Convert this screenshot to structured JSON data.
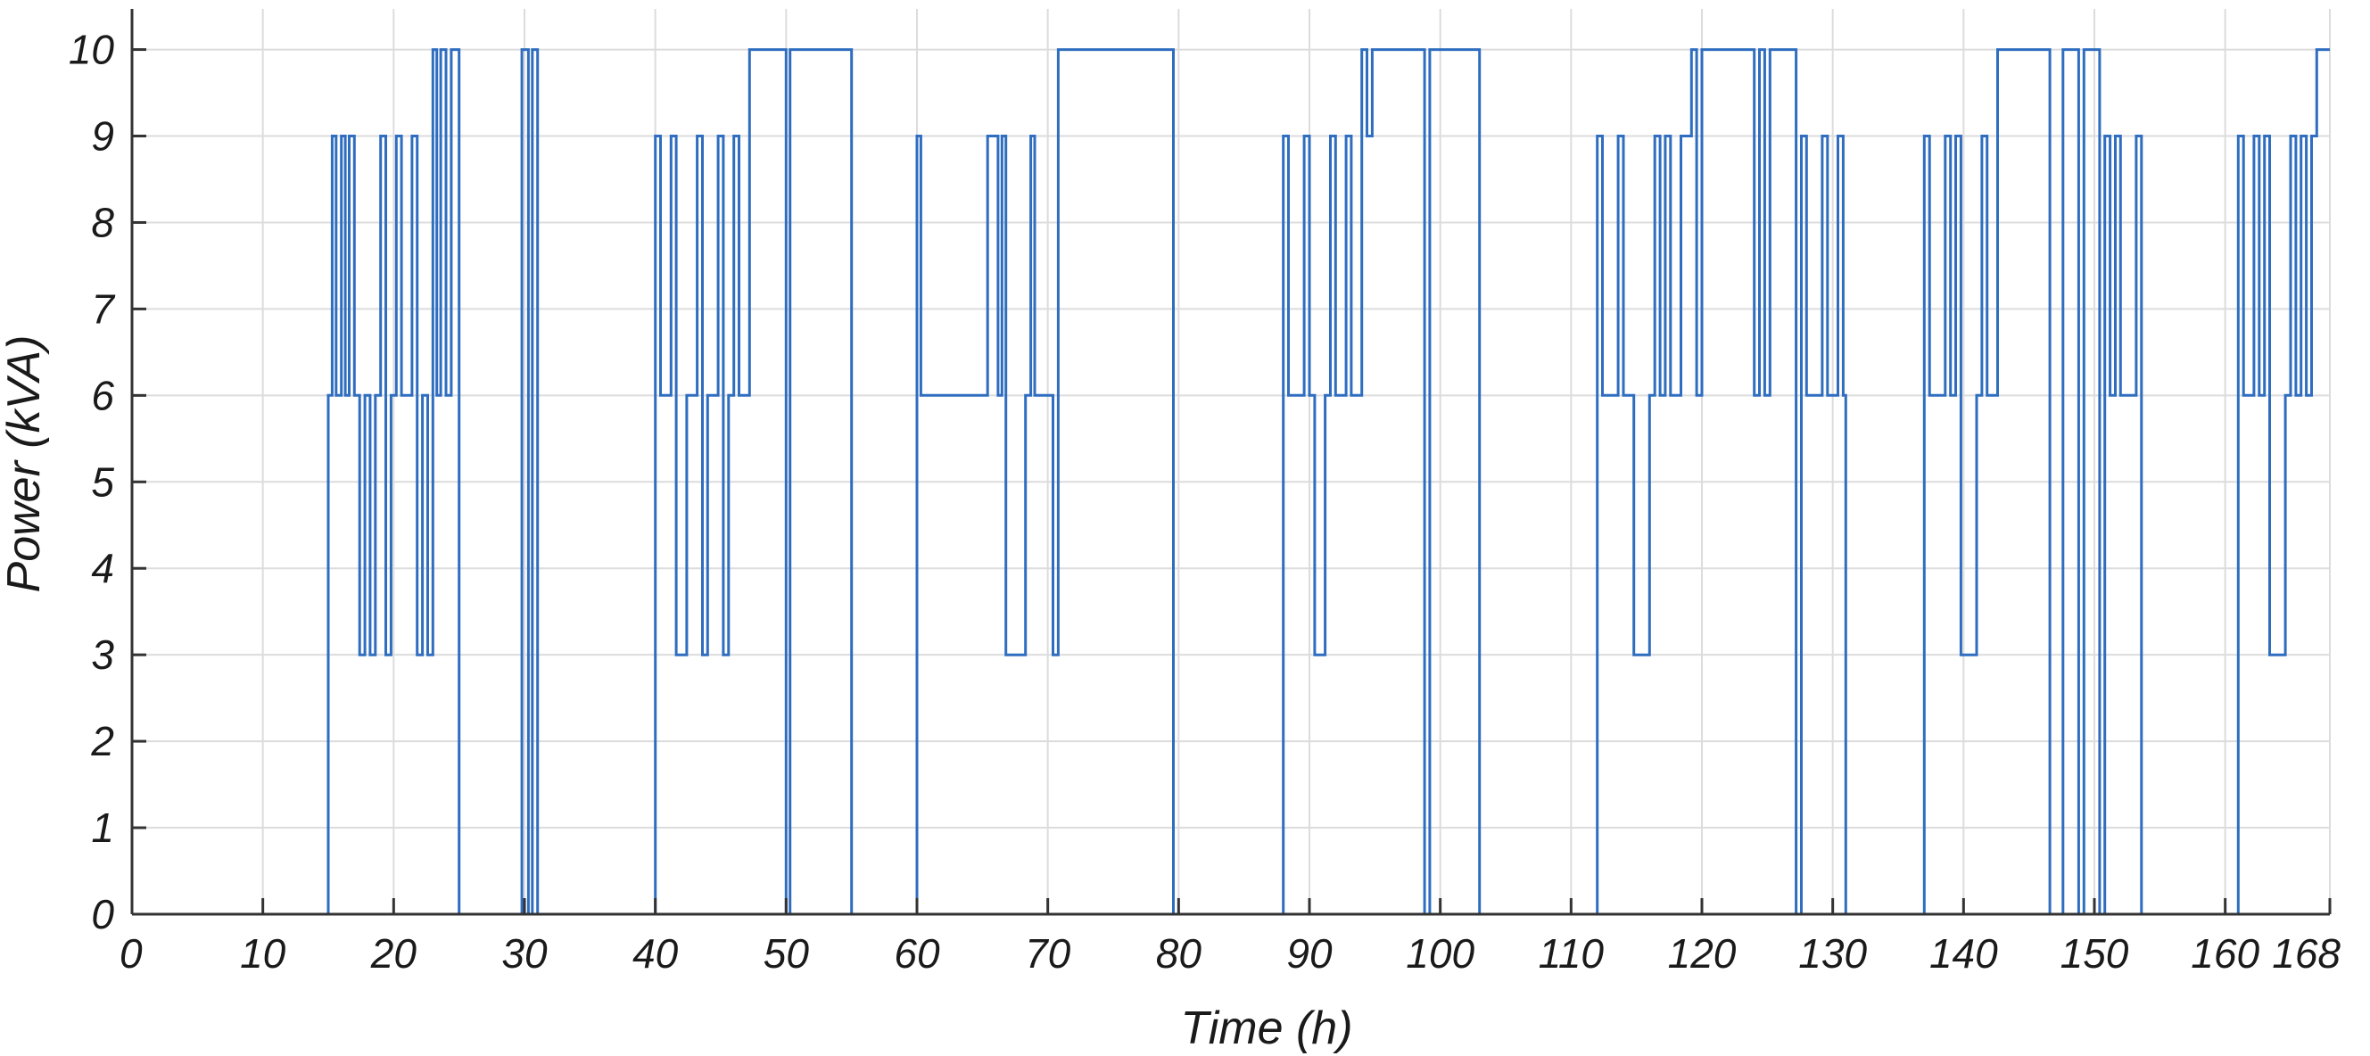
{
  "chart_data": {
    "type": "line",
    "title": "",
    "xlabel": "Time (h)",
    "ylabel": "Power (kVA)",
    "xlim": [
      0,
      168
    ],
    "ylim": [
      0,
      10
    ],
    "xticks": [
      0,
      10,
      20,
      30,
      40,
      50,
      60,
      70,
      80,
      90,
      100,
      110,
      120,
      130,
      140,
      150,
      160,
      168
    ],
    "yticks": [
      0,
      1,
      2,
      3,
      4,
      5,
      6,
      7,
      8,
      9,
      10
    ],
    "grid": true,
    "legend": "none",
    "colors": {
      "line": "#2e6dbf",
      "grid": "#dcdcdc",
      "axis": "#333333"
    },
    "series": [
      {
        "values": [
          [
            0,
            0
          ],
          [
            15,
            0
          ],
          [
            15,
            6
          ],
          [
            15.3,
            9
          ],
          [
            15.6,
            6
          ],
          [
            16,
            9
          ],
          [
            16.3,
            6
          ],
          [
            16.6,
            9
          ],
          [
            17,
            6
          ],
          [
            17.4,
            3
          ],
          [
            17.8,
            6
          ],
          [
            18.2,
            3
          ],
          [
            18.6,
            6
          ],
          [
            19,
            9
          ],
          [
            19.4,
            3
          ],
          [
            19.8,
            6
          ],
          [
            20.2,
            9
          ],
          [
            20.6,
            6
          ],
          [
            21,
            6
          ],
          [
            21.4,
            9
          ],
          [
            21.8,
            3
          ],
          [
            22.2,
            6
          ],
          [
            22.6,
            3
          ],
          [
            23,
            10
          ],
          [
            23.3,
            6
          ],
          [
            23.6,
            10
          ],
          [
            24,
            6
          ],
          [
            24.4,
            10
          ],
          [
            24.8,
            10
          ],
          [
            25,
            0
          ],
          [
            29.8,
            0
          ],
          [
            29.8,
            10
          ],
          [
            30.3,
            0
          ],
          [
            30.6,
            10
          ],
          [
            31,
            0
          ],
          [
            40,
            0
          ],
          [
            40,
            9
          ],
          [
            40.4,
            6
          ],
          [
            40.8,
            6
          ],
          [
            41.2,
            9
          ],
          [
            41.6,
            3
          ],
          [
            42,
            3
          ],
          [
            42.4,
            6
          ],
          [
            42.8,
            6
          ],
          [
            43.2,
            9
          ],
          [
            43.6,
            3
          ],
          [
            44,
            6
          ],
          [
            44.4,
            6
          ],
          [
            44.8,
            9
          ],
          [
            45.2,
            3
          ],
          [
            45.6,
            6
          ],
          [
            46,
            9
          ],
          [
            46.4,
            6
          ],
          [
            46.8,
            6
          ],
          [
            47.2,
            10
          ],
          [
            47.6,
            10
          ],
          [
            48,
            10
          ],
          [
            48.4,
            10
          ],
          [
            48.8,
            10
          ],
          [
            49.2,
            10
          ],
          [
            49.6,
            10
          ],
          [
            50,
            0
          ],
          [
            50.3,
            10
          ],
          [
            50.6,
            10
          ],
          [
            51,
            10
          ],
          [
            51.4,
            10
          ],
          [
            51.8,
            10
          ],
          [
            52.2,
            10
          ],
          [
            52.6,
            10
          ],
          [
            53,
            10
          ],
          [
            53.4,
            10
          ],
          [
            53.8,
            10
          ],
          [
            54.2,
            10
          ],
          [
            54.6,
            10
          ],
          [
            55,
            0
          ],
          [
            60,
            0
          ],
          [
            60,
            9
          ],
          [
            60.3,
            6
          ],
          [
            61,
            6
          ],
          [
            62,
            6
          ],
          [
            63,
            6
          ],
          [
            64,
            6
          ],
          [
            65,
            6
          ],
          [
            65.4,
            9
          ],
          [
            65.8,
            9
          ],
          [
            66.2,
            6
          ],
          [
            66.5,
            9
          ],
          [
            66.8,
            3
          ],
          [
            67.3,
            3
          ],
          [
            67.8,
            3
          ],
          [
            68.3,
            6
          ],
          [
            68.7,
            9
          ],
          [
            69,
            6
          ],
          [
            69.5,
            6
          ],
          [
            70,
            6
          ],
          [
            70.4,
            3
          ],
          [
            70.8,
            10
          ],
          [
            71.2,
            10
          ],
          [
            71.6,
            10
          ],
          [
            72,
            10
          ],
          [
            72.4,
            10
          ],
          [
            72.8,
            10
          ],
          [
            73.2,
            10
          ],
          [
            73.6,
            10
          ],
          [
            74,
            10
          ],
          [
            74.4,
            10
          ],
          [
            74.8,
            10
          ],
          [
            75.2,
            10
          ],
          [
            75.6,
            10
          ],
          [
            76,
            10
          ],
          [
            76.4,
            10
          ],
          [
            76.8,
            10
          ],
          [
            77.2,
            10
          ],
          [
            77.6,
            10
          ],
          [
            78,
            10
          ],
          [
            78.4,
            10
          ],
          [
            78.8,
            10
          ],
          [
            79.2,
            10
          ],
          [
            79.6,
            0
          ],
          [
            88,
            0
          ],
          [
            88,
            9
          ],
          [
            88.4,
            6
          ],
          [
            88.8,
            6
          ],
          [
            89.2,
            6
          ],
          [
            89.6,
            9
          ],
          [
            90,
            6
          ],
          [
            90.4,
            3
          ],
          [
            90.8,
            3
          ],
          [
            91.2,
            6
          ],
          [
            91.6,
            9
          ],
          [
            92,
            6
          ],
          [
            92.4,
            6
          ],
          [
            92.8,
            9
          ],
          [
            93.2,
            6
          ],
          [
            93.6,
            6
          ],
          [
            94,
            10
          ],
          [
            94.4,
            9
          ],
          [
            94.8,
            10
          ],
          [
            95.2,
            10
          ],
          [
            95.6,
            10
          ],
          [
            96,
            10
          ],
          [
            96.4,
            10
          ],
          [
            96.8,
            10
          ],
          [
            97.2,
            10
          ],
          [
            97.6,
            10
          ],
          [
            98,
            10
          ],
          [
            98.4,
            10
          ],
          [
            98.8,
            0
          ],
          [
            99.2,
            10
          ],
          [
            99.6,
            10
          ],
          [
            100,
            10
          ],
          [
            100.4,
            10
          ],
          [
            100.8,
            10
          ],
          [
            101.2,
            10
          ],
          [
            101.6,
            10
          ],
          [
            102,
            10
          ],
          [
            102.4,
            10
          ],
          [
            102.8,
            10
          ],
          [
            103,
            0
          ],
          [
            112,
            0
          ],
          [
            112,
            9
          ],
          [
            112.4,
            6
          ],
          [
            112.8,
            6
          ],
          [
            113.2,
            6
          ],
          [
            113.6,
            9
          ],
          [
            114,
            6
          ],
          [
            114.4,
            6
          ],
          [
            114.8,
            3
          ],
          [
            115.2,
            3
          ],
          [
            115.6,
            3
          ],
          [
            116,
            6
          ],
          [
            116.4,
            9
          ],
          [
            116.8,
            6
          ],
          [
            117.2,
            9
          ],
          [
            117.6,
            6
          ],
          [
            118,
            6
          ],
          [
            118.4,
            9
          ],
          [
            118.8,
            9
          ],
          [
            119.2,
            10
          ],
          [
            119.6,
            6
          ],
          [
            120,
            10
          ],
          [
            120.4,
            10
          ],
          [
            120.8,
            10
          ],
          [
            121.2,
            10
          ],
          [
            121.6,
            10
          ],
          [
            122,
            10
          ],
          [
            122.4,
            10
          ],
          [
            122.8,
            10
          ],
          [
            123.2,
            10
          ],
          [
            123.6,
            10
          ],
          [
            124,
            6
          ],
          [
            124.4,
            10
          ],
          [
            124.8,
            6
          ],
          [
            125.2,
            10
          ],
          [
            125.6,
            10
          ],
          [
            126,
            10
          ],
          [
            126.4,
            10
          ],
          [
            126.8,
            10
          ],
          [
            127.2,
            0
          ],
          [
            127.6,
            9
          ],
          [
            128,
            6
          ],
          [
            128.4,
            6
          ],
          [
            128.8,
            6
          ],
          [
            129.2,
            9
          ],
          [
            129.6,
            6
          ],
          [
            130,
            6
          ],
          [
            130.4,
            9
          ],
          [
            130.8,
            6
          ],
          [
            131,
            0
          ],
          [
            137,
            0
          ],
          [
            137,
            9
          ],
          [
            137.4,
            6
          ],
          [
            137.8,
            6
          ],
          [
            138.2,
            6
          ],
          [
            138.6,
            9
          ],
          [
            139,
            6
          ],
          [
            139.4,
            9
          ],
          [
            139.8,
            3
          ],
          [
            140.2,
            3
          ],
          [
            140.6,
            3
          ],
          [
            141,
            6
          ],
          [
            141.4,
            9
          ],
          [
            141.8,
            6
          ],
          [
            142.2,
            6
          ],
          [
            142.6,
            10
          ],
          [
            143,
            10
          ],
          [
            143.4,
            10
          ],
          [
            143.8,
            10
          ],
          [
            144.2,
            10
          ],
          [
            144.6,
            10
          ],
          [
            145,
            10
          ],
          [
            145.4,
            10
          ],
          [
            145.8,
            10
          ],
          [
            146.2,
            10
          ],
          [
            146.6,
            0
          ],
          [
            147.2,
            0
          ],
          [
            147.6,
            10
          ],
          [
            148,
            10
          ],
          [
            148.4,
            10
          ],
          [
            148.8,
            0
          ],
          [
            149.2,
            10
          ],
          [
            149.6,
            10
          ],
          [
            150,
            10
          ],
          [
            150.4,
            0
          ],
          [
            150.8,
            9
          ],
          [
            151.2,
            6
          ],
          [
            151.6,
            9
          ],
          [
            152,
            6
          ],
          [
            152.4,
            6
          ],
          [
            152.8,
            6
          ],
          [
            153.2,
            9
          ],
          [
            153.6,
            0
          ],
          [
            161,
            0
          ],
          [
            161,
            9
          ],
          [
            161.4,
            6
          ],
          [
            161.8,
            6
          ],
          [
            162.2,
            9
          ],
          [
            162.6,
            6
          ],
          [
            163,
            9
          ],
          [
            163.4,
            3
          ],
          [
            163.8,
            3
          ],
          [
            164.2,
            3
          ],
          [
            164.6,
            6
          ],
          [
            165,
            9
          ],
          [
            165.4,
            6
          ],
          [
            165.8,
            9
          ],
          [
            166.2,
            6
          ],
          [
            166.6,
            9
          ],
          [
            167,
            10
          ],
          [
            167.4,
            10
          ],
          [
            167.8,
            10
          ],
          [
            168,
            10
          ]
        ]
      }
    ]
  }
}
